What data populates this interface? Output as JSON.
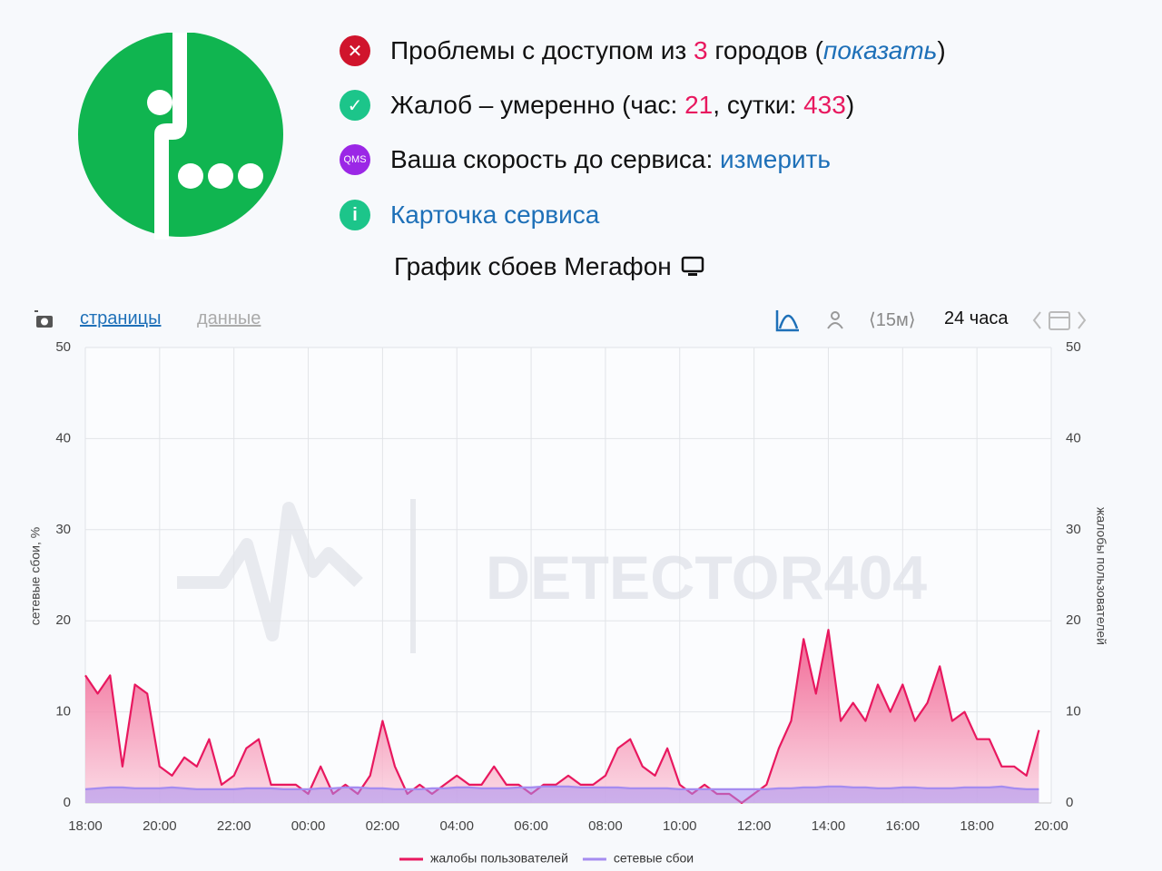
{
  "header": {
    "access": {
      "text": "Проблемы с доступом из ",
      "count": 3,
      "text2": " городов (",
      "link": "показать",
      "text3": ")"
    },
    "complaints": {
      "text": "Жалоб – умеренно (час: ",
      "hour": 21,
      "text2": ", сутки: ",
      "day": 433,
      "text3": ")"
    },
    "speed": {
      "icon": "QMS",
      "text": "Ваша скорость до сервиса: ",
      "link": "измерить"
    },
    "card": {
      "link": "Карточка сервиса"
    },
    "title": "График сбоев Мегафон"
  },
  "toolbar": {
    "pages": "страницы",
    "data": "данные",
    "interval": "⟨15м⟩",
    "range": "24 часа"
  },
  "chart_data": {
    "type": "line",
    "watermark": "DETECTOR404",
    "ylabel": "сетевые сбои, %",
    "y2label": "жалобы пользователей",
    "categories": [
      "18:00",
      null,
      null,
      null,
      null,
      null,
      "20:00",
      null,
      null,
      null,
      null,
      null,
      "22:00",
      null,
      null,
      null,
      null,
      null,
      "00:00",
      null,
      null,
      null,
      null,
      null,
      "02:00",
      null,
      null,
      null,
      null,
      null,
      "04:00",
      null,
      null,
      null,
      null,
      null,
      "06:00",
      null,
      null,
      null,
      null,
      null,
      "08:00",
      null,
      null,
      null,
      null,
      null,
      "10:00",
      null,
      null,
      null,
      null,
      null,
      "12:00",
      null,
      null,
      null,
      null,
      null,
      "14:00",
      null,
      null,
      null,
      null,
      null,
      "16:00",
      null,
      null,
      null,
      null,
      null,
      "18:00",
      null,
      null,
      null,
      null,
      null,
      "20:00"
    ],
    "series": [
      {
        "name": "жалобы пользователей",
        "color": "#e8185f",
        "axis": "y2",
        "values": [
          14,
          12,
          14,
          4,
          13,
          12,
          4,
          3,
          5,
          4,
          7,
          2,
          3,
          6,
          7,
          2,
          2,
          2,
          1,
          4,
          1,
          2,
          1,
          3,
          9,
          4,
          1,
          2,
          1,
          2,
          3,
          2,
          2,
          4,
          2,
          2,
          1,
          2,
          2,
          3,
          2,
          2,
          3,
          6,
          7,
          4,
          3,
          6,
          2,
          1,
          2,
          1,
          1,
          0,
          1,
          2,
          6,
          9,
          18,
          12,
          19,
          9,
          11,
          9,
          13,
          10,
          13,
          9,
          11,
          15,
          9,
          10,
          7,
          7,
          4,
          4,
          3,
          8,
          null
        ]
      },
      {
        "name": "сетевые сбои",
        "color": "#a58cf0",
        "values": [
          1.5,
          1.6,
          1.7,
          1.7,
          1.6,
          1.6,
          1.6,
          1.7,
          1.6,
          1.5,
          1.5,
          1.5,
          1.5,
          1.6,
          1.6,
          1.6,
          1.5,
          1.5,
          1.5,
          1.6,
          1.6,
          1.7,
          1.7,
          1.6,
          1.6,
          1.5,
          1.5,
          1.5,
          1.6,
          1.6,
          1.7,
          1.7,
          1.6,
          1.6,
          1.6,
          1.7,
          1.7,
          1.8,
          1.8,
          1.8,
          1.7,
          1.7,
          1.7,
          1.7,
          1.6,
          1.6,
          1.6,
          1.6,
          1.5,
          1.5,
          1.5,
          1.5,
          1.5,
          1.5,
          1.5,
          1.5,
          1.6,
          1.6,
          1.7,
          1.7,
          1.8,
          1.8,
          1.7,
          1.7,
          1.6,
          1.6,
          1.7,
          1.7,
          1.6,
          1.6,
          1.6,
          1.7,
          1.7,
          1.7,
          1.8,
          1.6,
          1.5,
          1.5,
          null
        ]
      }
    ],
    "ylim": [
      0,
      50
    ],
    "yticks": [
      0,
      10,
      20,
      30,
      40,
      50
    ],
    "y2lim": [
      0,
      50
    ],
    "y2ticks": [
      0,
      10,
      20,
      30,
      40,
      50
    ],
    "grid": true,
    "legend": "bottom"
  }
}
